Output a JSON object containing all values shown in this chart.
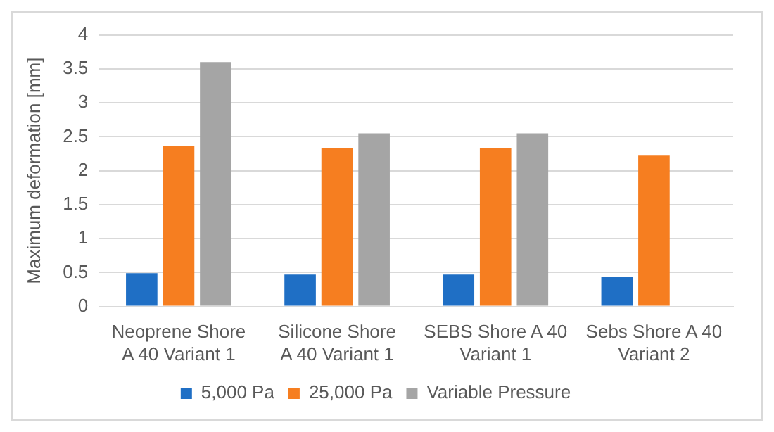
{
  "chart_data": {
    "type": "bar",
    "ylabel": "Maximum deformation [mm]",
    "categories": [
      "Neoprene Shore A 40 Variant 1",
      "Silicone Shore A 40 Variant 1",
      "SEBS Shore A 40 Variant 1",
      "Sebs Shore A 40 Variant 2"
    ],
    "series": [
      {
        "name": "5,000 Pa",
        "color": "#1f6fc5",
        "values": [
          0.49,
          0.47,
          0.47,
          0.43
        ]
      },
      {
        "name": "25,000 Pa",
        "color": "#f67e20",
        "values": [
          2.36,
          2.33,
          2.33,
          2.22
        ]
      },
      {
        "name": "Variable Pressure",
        "color": "#a5a5a5",
        "values": [
          3.6,
          2.55,
          2.55,
          null
        ]
      }
    ],
    "ylim": [
      0,
      4
    ],
    "yticks": [
      0,
      0.5,
      1,
      1.5,
      2,
      2.5,
      3,
      3.5,
      4
    ],
    "grid": "y",
    "legend": "bottom"
  }
}
